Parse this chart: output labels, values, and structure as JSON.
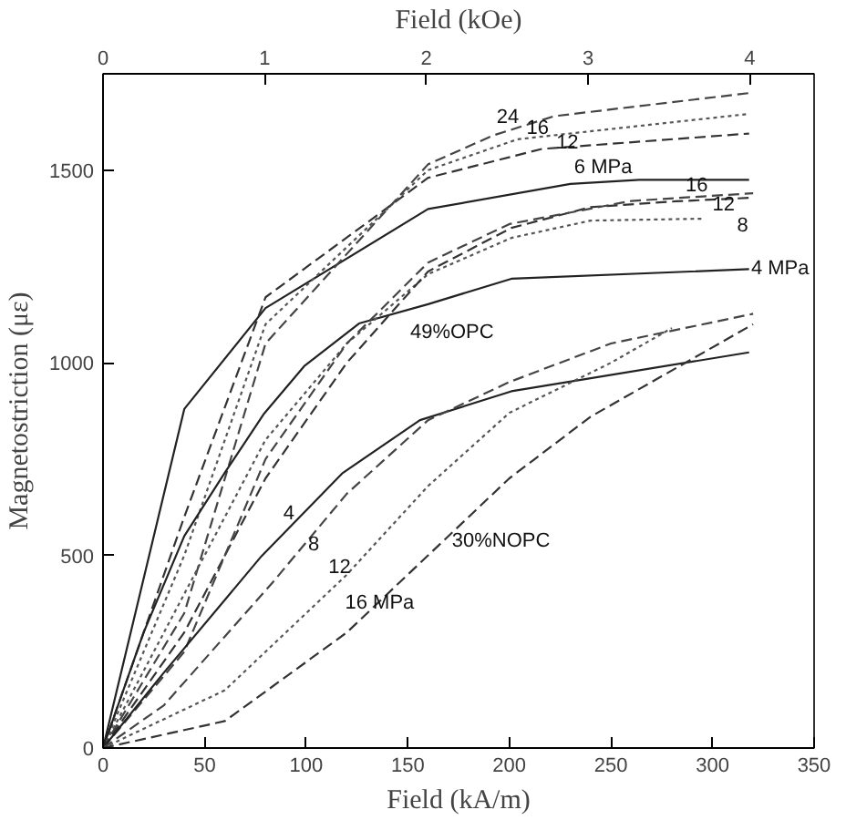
{
  "chart_data": {
    "type": "line",
    "xlabel": "Field (kA/m)",
    "ylabel": "Magnetostriction (με)",
    "x2label": "Field (kOe)",
    "xlim": [
      0,
      350
    ],
    "xticks": [
      0,
      50,
      100,
      150,
      200,
      250,
      300,
      350
    ],
    "ylim": [
      0,
      1750
    ],
    "yticks": [
      0,
      500,
      1000,
      1500
    ],
    "x2lim": [
      0,
      4.398
    ],
    "x2ticks": [
      0,
      1,
      2,
      3,
      4
    ],
    "grid": false,
    "marker": "none",
    "series": [
      {
        "color": "#222222",
        "line_style": "solid",
        "x": [
          0,
          40,
          80,
          160,
          230,
          264,
          318
        ],
        "values": [
          0,
          880,
          1142,
          1399,
          1464,
          1475,
          1475
        ]
      },
      {
        "color": "#333333",
        "line_style": "dashed",
        "x": [
          0,
          40,
          80,
          160,
          216,
          318
        ],
        "values": [
          0,
          600,
          1170,
          1480,
          1555,
          1595
        ]
      },
      {
        "color": "#555555",
        "line_style": "dotted",
        "x": [
          0,
          40,
          80,
          160,
          204,
          318
        ],
        "values": [
          0,
          500,
          1100,
          1500,
          1580,
          1646
        ]
      },
      {
        "color": "#444444",
        "line_style": "dashed",
        "x": [
          0,
          40,
          80,
          160,
          192,
          222,
          318
        ],
        "values": [
          0,
          350,
          1050,
          1515,
          1590,
          1640,
          1700
        ]
      },
      {
        "color": "#222222",
        "line_style": "solid",
        "x": [
          0,
          20,
          40,
          60,
          79,
          99,
          126,
          160,
          201,
          318
        ],
        "values": [
          0,
          300,
          550,
          715,
          866,
          991,
          1102,
          1152,
          1218,
          1243
        ]
      },
      {
        "color": "#555555",
        "line_style": "dotted",
        "x": [
          0,
          40,
          80,
          120,
          160,
          201,
          240,
          296
        ],
        "values": [
          0,
          400,
          800,
          1050,
          1230,
          1324,
          1369,
          1374
        ]
      },
      {
        "color": "#333333",
        "line_style": "dashed",
        "x": [
          0,
          40,
          80,
          120,
          160,
          201,
          240,
          282,
          318
        ],
        "values": [
          0,
          300,
          700,
          1000,
          1237,
          1350,
          1404,
          1419,
          1428
        ]
      },
      {
        "color": "#444444",
        "line_style": "dashed",
        "x": [
          0,
          40,
          80,
          120,
          160,
          200,
          260,
          320
        ],
        "values": [
          0,
          250,
          750,
          1050,
          1260,
          1360,
          1420,
          1440
        ]
      },
      {
        "color": "#222222",
        "line_style": "solid",
        "x": [
          0,
          30,
          78,
          118,
          156,
          201,
          318
        ],
        "values": [
          0,
          196,
          498,
          714,
          851,
          926,
          1027
        ]
      },
      {
        "color": "#444444",
        "line_style": "dashed",
        "x": [
          0,
          30,
          84,
          120,
          160,
          200,
          250,
          320
        ],
        "values": [
          0,
          111,
          433,
          660,
          851,
          950,
          1050,
          1127
        ]
      },
      {
        "color": "#555555",
        "line_style": "dotted",
        "x": [
          0,
          60,
          120,
          160,
          200,
          250,
          280
        ],
        "values": [
          0,
          150,
          450,
          680,
          870,
          1000,
          1090
        ]
      },
      {
        "color": "#333333",
        "line_style": "dashed",
        "x": [
          0,
          60,
          120,
          160,
          200,
          240,
          280,
          320
        ],
        "values": [
          0,
          70,
          300,
          500,
          700,
          860,
          980,
          1100
        ]
      }
    ],
    "annotations": [
      {
        "text": "24",
        "x": 192,
        "y": 1590
      },
      {
        "text": "16",
        "x": 204,
        "y": 1580
      },
      {
        "text": "12",
        "x": 216,
        "y": 1555
      },
      {
        "text": "6 MPa",
        "x": 230,
        "y": 1464
      },
      {
        "text": "16",
        "x": 320,
        "y": 1440
      },
      {
        "text": "12",
        "x": 318,
        "y": 1428
      },
      {
        "text": "8",
        "x": 296,
        "y": 1374
      },
      {
        "text": "4 MPa",
        "x": 318,
        "y": 1243
      },
      {
        "text": "49%OPC",
        "x": 126,
        "y": 1102
      },
      {
        "text": "4",
        "x": 78,
        "y": 498
      },
      {
        "text": "8",
        "x": 84,
        "y": 433
      },
      {
        "text": "12",
        "x": 120,
        "y": 450
      },
      {
        "text": "16 MPa",
        "x": 120,
        "y": 300
      },
      {
        "text": "30%NOPC",
        "x": 160,
        "y": 500
      }
    ]
  }
}
